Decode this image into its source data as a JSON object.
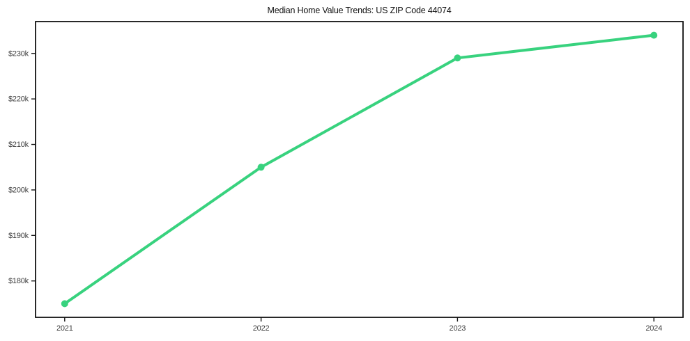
{
  "chart_data": {
    "type": "line",
    "title": "Median Home Value Trends: US ZIP Code 44074",
    "categories": [
      "2021",
      "2022",
      "2023",
      "2024"
    ],
    "series": [
      {
        "name": "Median Home Value",
        "values": [
          175000,
          205000,
          229000,
          234000
        ]
      }
    ],
    "y_ticks": [
      {
        "label": "$180k",
        "value": 180000
      },
      {
        "label": "$190k",
        "value": 190000
      },
      {
        "label": "$200k",
        "value": 200000
      },
      {
        "label": "$210k",
        "value": 210000
      },
      {
        "label": "$220k",
        "value": 220000
      },
      {
        "label": "$230k",
        "value": 230000
      }
    ],
    "ylim": [
      172000,
      237000
    ],
    "xlabel": "",
    "ylabel": "",
    "grid": false,
    "legend_position": "none",
    "line_color": "#38d27e",
    "marker_color": "#38d27e",
    "axis_color": "#111111",
    "tick_label_color": "#3c3c3c",
    "background_color": "#ffffff"
  }
}
